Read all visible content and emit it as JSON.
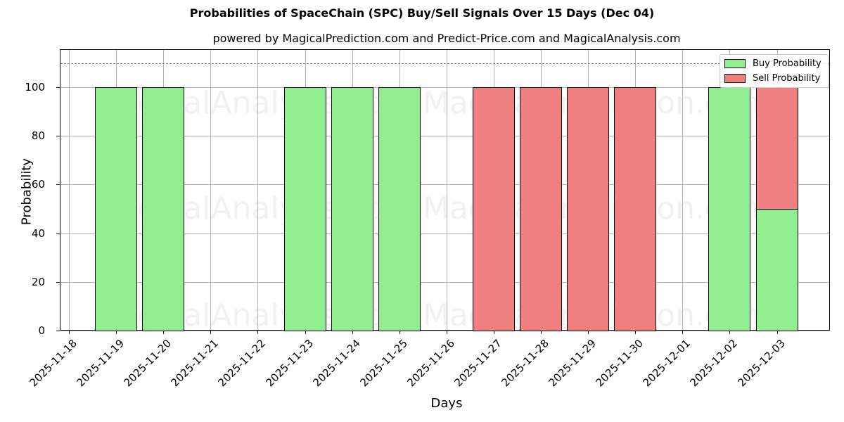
{
  "chart_data": {
    "type": "bar",
    "stacked": true,
    "title": "Probabilities of SpaceChain (SPC) Buy/Sell Signals Over 15 Days (Dec 04)",
    "subtitle": "powered by MagicalPrediction.com and Predict-Price.com and MagicalAnalysis.com",
    "xlabel": "Days",
    "ylabel": "Probability",
    "ylim": [
      0,
      115
    ],
    "yticks": [
      0,
      20,
      40,
      60,
      80,
      100
    ],
    "reference_line": 110,
    "grid": true,
    "legend_position": "upper right",
    "categories": [
      "2025-11-18",
      "2025-11-19",
      "2025-11-20",
      "2025-11-21",
      "2025-11-22",
      "2025-11-23",
      "2025-11-24",
      "2025-11-25",
      "2025-11-26",
      "2025-11-27",
      "2025-11-28",
      "2025-11-29",
      "2025-11-30",
      "2025-12-01",
      "2025-12-02",
      "2025-12-03"
    ],
    "series": [
      {
        "name": "Buy Probability",
        "color": "#90ee90",
        "values": [
          0,
          100,
          100,
          0,
          0,
          100,
          100,
          100,
          0,
          0,
          0,
          0,
          0,
          0,
          100,
          50
        ]
      },
      {
        "name": "Sell Probability",
        "color": "#f08080",
        "values": [
          0,
          0,
          0,
          0,
          0,
          0,
          0,
          0,
          0,
          100,
          100,
          100,
          100,
          0,
          0,
          50
        ]
      }
    ]
  },
  "watermarks": [
    "MagicalAnalysis.com",
    "MagicalPrediction.com"
  ]
}
